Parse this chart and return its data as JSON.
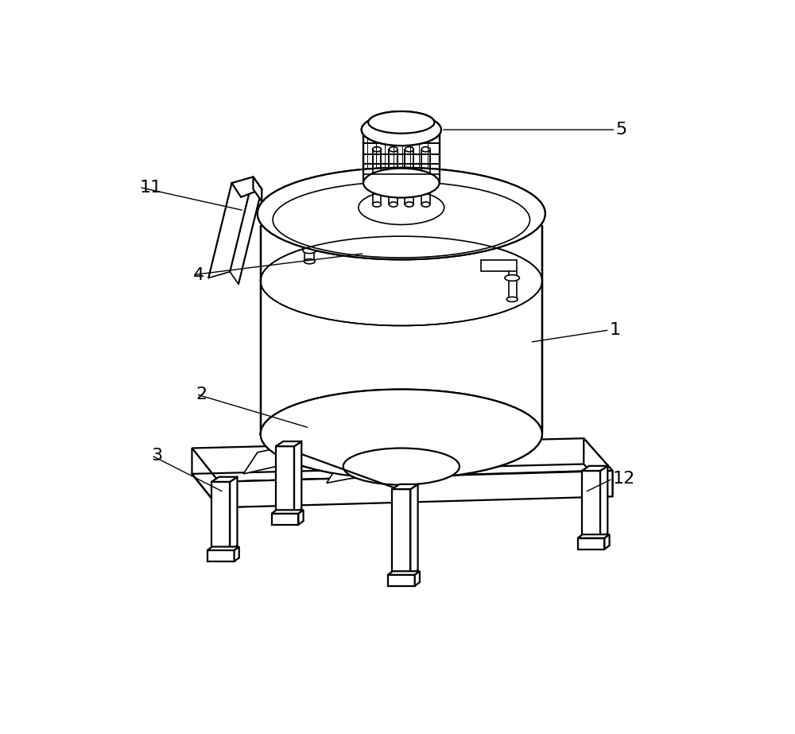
{
  "bg_color": "#ffffff",
  "line_color": "#000000",
  "line_width": 1.2,
  "fig_width": 10.0,
  "fig_height": 9.23,
  "label_fontsize": 16
}
